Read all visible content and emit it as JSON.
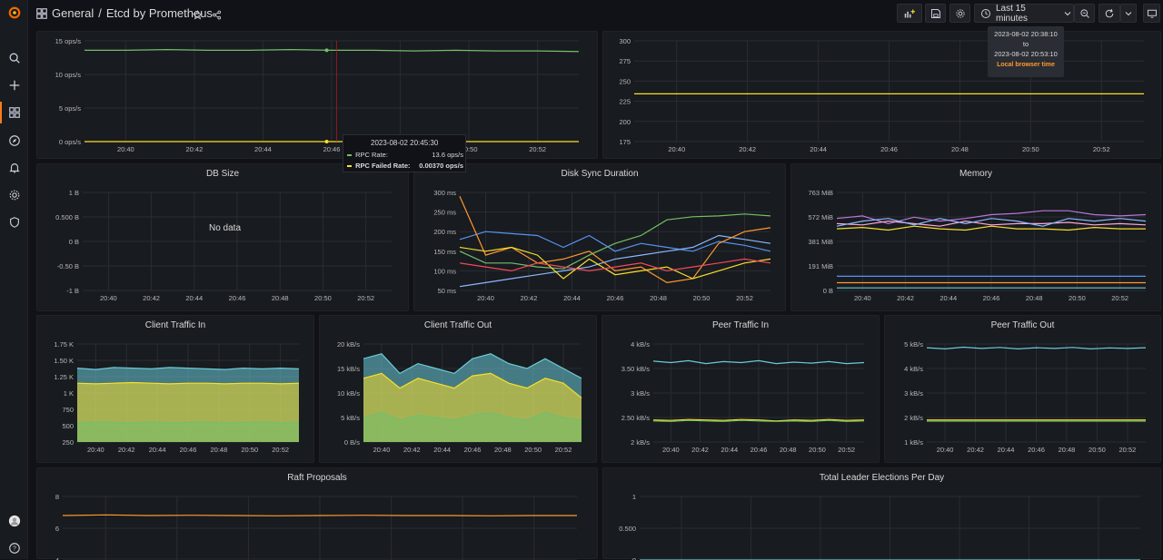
{
  "breadcrumb": {
    "folder": "General",
    "separator": "/",
    "dashboard": "Etcd by Prometheus"
  },
  "toolbar": {
    "time_range": "Last 15 minutes"
  },
  "time_tip": {
    "from": "2023-08-02 20:38:10",
    "to_word": "to",
    "to": "2023-08-02 20:53:10",
    "zone": "Local browser time"
  },
  "hover_tooltip": {
    "time": "2023-08-02 20:45:30",
    "rows": [
      {
        "label": "RPC Rate:",
        "value": "13.6 ops/s",
        "color": "#73bf69"
      },
      {
        "label": "RPC Failed Rate:",
        "value": "0.00370 ops/s",
        "color": "#fade2a"
      }
    ]
  },
  "colors": {
    "green": "#73bf69",
    "yellow": "#fade2a",
    "blue": "#5794f2",
    "cyan": "#8ab8ff",
    "orange": "#ff9830",
    "red": "#f2495c",
    "purple": "#b877d9",
    "teal": "#6ccad7",
    "pink": "#ffa6d6"
  },
  "time_labels": [
    "20:40",
    "20:42",
    "20:44",
    "20:46",
    "20:48",
    "20:50",
    "20:52"
  ],
  "panels": {
    "rpc": {
      "title": "",
      "y_ticks": [
        "15 ops/s",
        "10 ops/s",
        "5 ops/s",
        "0 ops/s"
      ]
    },
    "active_streams": {
      "title": "",
      "y_ticks": [
        "300",
        "275",
        "250",
        "225",
        "200",
        "175"
      ]
    },
    "db_size": {
      "title": "DB Size",
      "y_ticks": [
        "1 B",
        "0.500 B",
        "0 B",
        "-0.50 B",
        "-1 B"
      ],
      "no_data": "No data"
    },
    "disk_sync": {
      "title": "Disk Sync Duration",
      "y_ticks": [
        "300 ms",
        "250 ms",
        "200 ms",
        "150 ms",
        "100 ms",
        "50 ms"
      ]
    },
    "memory": {
      "title": "Memory",
      "y_ticks": [
        "763 MiB",
        "572 MiB",
        "381 MiB",
        "191 MiB",
        "0 B"
      ]
    },
    "client_in": {
      "title": "Client Traffic In",
      "y_ticks": [
        "1.75 K",
        "1.50 K",
        "1.25 K",
        "1 K",
        "750",
        "500",
        "250"
      ]
    },
    "client_out": {
      "title": "Client Traffic Out",
      "y_ticks": [
        "20 kB/s",
        "15 kB/s",
        "10 kB/s",
        "5 kB/s",
        "0 B/s"
      ]
    },
    "peer_in": {
      "title": "Peer Traffic In",
      "y_ticks": [
        "4 kB/s",
        "3.50 kB/s",
        "3 kB/s",
        "2.50 kB/s",
        "2 kB/s"
      ]
    },
    "peer_out": {
      "title": "Peer Traffic Out",
      "y_ticks": [
        "5 kB/s",
        "4 kB/s",
        "3 kB/s",
        "2 kB/s",
        "1 kB/s"
      ]
    },
    "raft": {
      "title": "Raft Proposals",
      "y_ticks": [
        "8",
        "6",
        "4"
      ]
    },
    "elections": {
      "title": "Total Leader Elections Per Day",
      "y_ticks": [
        "1",
        "0.500",
        "0"
      ]
    }
  },
  "chart_data": [
    {
      "type": "line",
      "panel": "rpc",
      "ylim": [
        0,
        15
      ],
      "series": [
        {
          "name": "RPC Rate",
          "values": [
            13.6,
            13.6,
            13.7,
            13.6,
            13.6,
            13.7,
            13.6,
            13.6,
            13.5,
            13.6,
            13.5,
            13.5,
            13.4
          ]
        },
        {
          "name": "RPC Failed Rate",
          "values": [
            0.004,
            0.004,
            0.004,
            0.004,
            0.004,
            0.004,
            0.004,
            0.004,
            0.004,
            0.004,
            0.004,
            0.004,
            0.004
          ]
        }
      ]
    },
    {
      "type": "line",
      "panel": "active_streams",
      "ylim": [
        170,
        305
      ],
      "series": [
        {
          "values": [
            234,
            234,
            234,
            234,
            234,
            234,
            234,
            234,
            234,
            234,
            234,
            234,
            234
          ]
        }
      ]
    },
    {
      "type": "line",
      "panel": "disk_sync",
      "ylim": [
        50,
        300
      ],
      "series": [
        {
          "values": [
            150,
            120,
            120,
            110,
            105,
            140,
            170,
            190,
            230,
            238,
            240,
            245,
            240
          ]
        },
        {
          "values": [
            180,
            200,
            195,
            190,
            160,
            190,
            150,
            170,
            160,
            150,
            175,
            165,
            150
          ]
        },
        {
          "values": [
            60,
            70,
            80,
            90,
            100,
            110,
            130,
            140,
            150,
            160,
            190,
            180,
            170
          ]
        },
        {
          "values": [
            290,
            140,
            160,
            120,
            130,
            150,
            100,
            110,
            70,
            80,
            170,
            200,
            210
          ]
        },
        {
          "values": [
            160,
            150,
            160,
            140,
            80,
            130,
            90,
            100,
            110,
            80,
            100,
            120,
            130
          ]
        },
        {
          "values": [
            120,
            110,
            100,
            120,
            110,
            100,
            110,
            120,
            100,
            110,
            120,
            130,
            120
          ]
        }
      ]
    },
    {
      "type": "line",
      "panel": "memory",
      "ylim": [
        0,
        763
      ],
      "series": [
        {
          "values": [
            560,
            580,
            520,
            570,
            540,
            560,
            590,
            600,
            620,
            620,
            590,
            580,
            590
          ]
        },
        {
          "values": [
            520,
            510,
            540,
            520,
            500,
            540,
            510,
            520,
            520,
            530,
            510,
            520,
            510
          ]
        },
        {
          "values": [
            500,
            540,
            560,
            510,
            560,
            520,
            560,
            540,
            500,
            560,
            540,
            560,
            540
          ]
        },
        {
          "values": [
            480,
            490,
            470,
            500,
            480,
            470,
            500,
            480,
            480,
            470,
            490,
            480,
            480
          ]
        },
        {
          "values": [
            110,
            110,
            110,
            110,
            110,
            110,
            110,
            110,
            110,
            110,
            110,
            110,
            110
          ]
        },
        {
          "values": [
            60,
            60,
            60,
            60,
            60,
            60,
            60,
            60,
            60,
            60,
            60,
            60,
            60
          ]
        },
        {
          "values": [
            20,
            20,
            20,
            20,
            20,
            20,
            20,
            20,
            20,
            20,
            20,
            20,
            20
          ]
        }
      ]
    },
    {
      "type": "area",
      "panel": "client_in",
      "ylim": [
        250,
        1750
      ],
      "series": [
        {
          "values": [
            540,
            560,
            550,
            540,
            560,
            540,
            550,
            560,
            540,
            550,
            560,
            540,
            550
          ]
        },
        {
          "values": [
            1150,
            1140,
            1150,
            1160,
            1150,
            1140,
            1150,
            1150,
            1140,
            1150,
            1150,
            1140,
            1150
          ]
        },
        {
          "values": [
            1380,
            1360,
            1390,
            1380,
            1370,
            1390,
            1380,
            1370,
            1360,
            1380,
            1370,
            1380,
            1370
          ]
        }
      ]
    },
    {
      "type": "area",
      "panel": "client_out",
      "ylim": [
        0,
        20
      ],
      "series": [
        {
          "values": [
            5,
            6,
            4.5,
            5.5,
            5,
            4.5,
            5.5,
            6,
            5,
            4.5,
            6,
            5,
            4.5
          ]
        },
        {
          "values": [
            13,
            14,
            11,
            13,
            12,
            11,
            13.5,
            14,
            12,
            11,
            13,
            12,
            9
          ]
        },
        {
          "values": [
            17,
            18,
            14,
            16,
            15,
            14,
            17,
            18,
            16,
            15,
            17,
            15,
            13
          ]
        }
      ]
    },
    {
      "type": "line",
      "panel": "peer_in",
      "ylim": [
        2,
        4
      ],
      "series": [
        {
          "values": [
            3.65,
            3.62,
            3.66,
            3.6,
            3.64,
            3.62,
            3.66,
            3.6,
            3.63,
            3.61,
            3.64,
            3.6,
            3.62
          ]
        },
        {
          "values": [
            2.45,
            2.44,
            2.46,
            2.45,
            2.44,
            2.46,
            2.45,
            2.43,
            2.45,
            2.44,
            2.46,
            2.44,
            2.45
          ]
        },
        {
          "values": [
            2.43,
            2.42,
            2.44,
            2.43,
            2.42,
            2.44,
            2.43,
            2.42,
            2.43,
            2.42,
            2.44,
            2.42,
            2.43
          ]
        }
      ]
    },
    {
      "type": "line",
      "panel": "peer_out",
      "ylim": [
        1,
        5
      ],
      "series": [
        {
          "values": [
            4.85,
            4.8,
            4.87,
            4.82,
            4.86,
            4.8,
            4.85,
            4.82,
            4.86,
            4.8,
            4.84,
            4.82,
            4.85
          ]
        },
        {
          "values": [
            1.9,
            1.9,
            1.9,
            1.9,
            1.9,
            1.9,
            1.9,
            1.9,
            1.9,
            1.9,
            1.9,
            1.9,
            1.9
          ]
        },
        {
          "values": [
            1.85,
            1.85,
            1.85,
            1.85,
            1.85,
            1.85,
            1.85,
            1.85,
            1.85,
            1.85,
            1.85,
            1.85,
            1.85
          ]
        }
      ]
    },
    {
      "type": "line",
      "panel": "raft",
      "ylim": [
        3,
        8
      ],
      "series": [
        {
          "values": [
            6.5,
            6.55,
            6.5,
            6.52,
            6.5,
            6.48,
            6.5,
            6.52,
            6.5,
            6.5,
            6.48,
            6.5,
            6.5
          ]
        }
      ]
    },
    {
      "type": "line",
      "panel": "elections",
      "ylim": [
        0,
        1
      ],
      "series": [
        {
          "values": [
            0,
            0,
            0,
            0,
            0,
            0,
            0,
            0,
            0,
            0,
            0,
            0,
            0
          ]
        }
      ]
    }
  ]
}
